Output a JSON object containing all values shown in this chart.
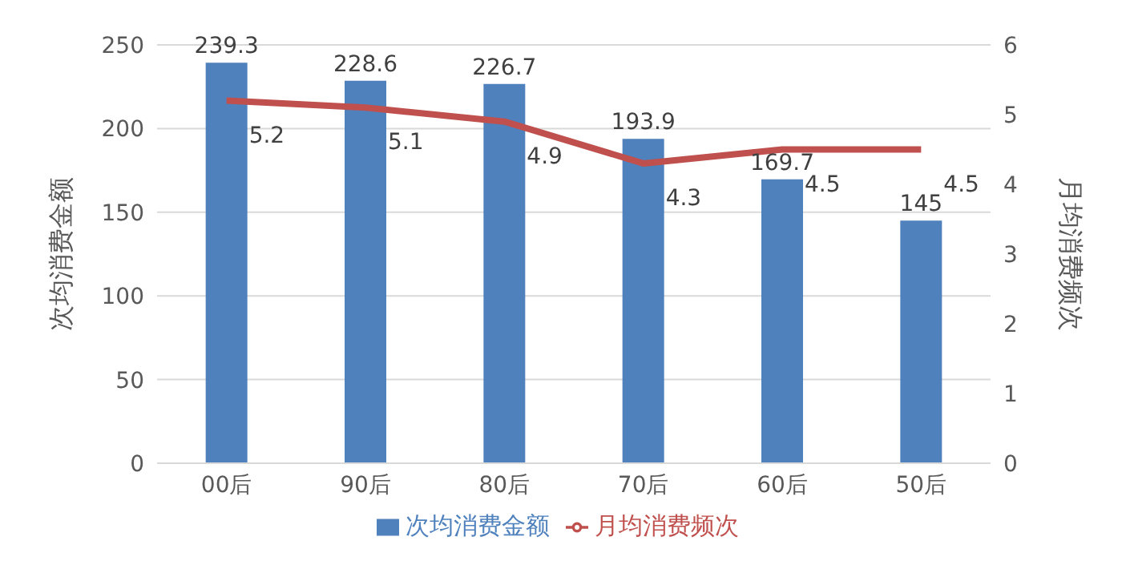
{
  "chart_data": {
    "type": "bar",
    "ylabel": "次均消费金额",
    "y2label": "月均消费频次",
    "categories": [
      "00后",
      "90后",
      "80后",
      "70后",
      "60后",
      "50后"
    ],
    "series": [
      {
        "name": "次均消费金额",
        "color": "#4f81bd",
        "values": [
          239.3,
          228.6,
          226.7,
          193.9,
          169.7,
          145
        ]
      },
      {
        "name": "月均消费频次",
        "type": "line",
        "axis": "y2",
        "color": "#c0504d",
        "marker": "none",
        "values": [
          5.2,
          5.1,
          4.9,
          4.3,
          4.5,
          4.5
        ]
      }
    ],
    "ylim": [
      0,
      250
    ],
    "yticks": [
      0,
      50,
      100,
      150,
      200,
      250
    ],
    "y2lim": [
      0,
      6
    ],
    "y2ticks": [
      0,
      1,
      2,
      3,
      4,
      5,
      6
    ],
    "grid": "y",
    "legend": "bottom",
    "data_labels": true
  }
}
